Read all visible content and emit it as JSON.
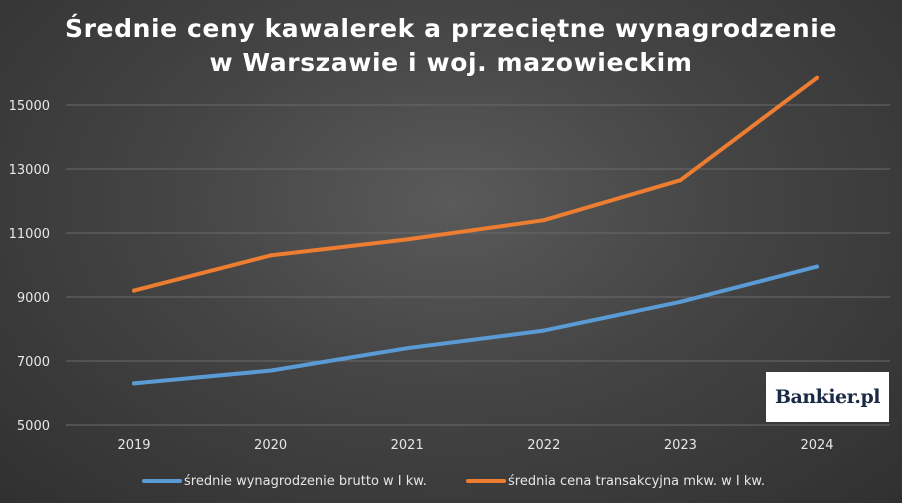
{
  "chart_data": {
    "type": "line",
    "title_lines": [
      "Średnie ceny kawalerek a przeciętne wynagrodzenie",
      "w Warszawie i woj. mazowieckim"
    ],
    "x": [
      "2019",
      "2020",
      "2021",
      "2022",
      "2023",
      "2024"
    ],
    "y_ticks": [
      "5000",
      "7000",
      "9000",
      "11000",
      "13000",
      "15000"
    ],
    "ylim": [
      5000,
      16000
    ],
    "grid": "horizontal",
    "legend_position": "bottom",
    "series": [
      {
        "name": "średnie wynagrodzenie brutto w I kw.",
        "color": "#5b9bd5",
        "values": [
          6300,
          6700,
          7400,
          7950,
          8850,
          9950
        ]
      },
      {
        "name": "średnia cena transakcyjna mkw. w I kw.",
        "color": "#ed7d31",
        "values": [
          9200,
          10300,
          10800,
          11400,
          12650,
          15850
        ]
      }
    ]
  },
  "watermark": {
    "text": "Bankier.pl"
  },
  "colors": {
    "background": "#444444",
    "gridline": "#6a6a6a",
    "text": "#e6e6e6"
  }
}
